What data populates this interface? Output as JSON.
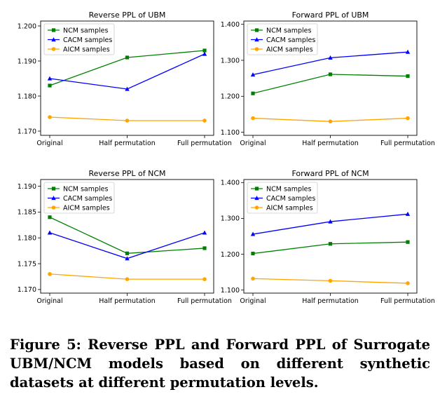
{
  "caption": "Figure 5: Reverse PPL and Forward PPL of Surrogate UBM/NCM models based on different synthetic datasets at different permutation levels.",
  "colors": {
    "ncm": "#008000",
    "cacm": "#0000ff",
    "aicm": "#ffa500"
  },
  "chart_data": [
    {
      "type": "line",
      "title": "Reverse PPL of UBM",
      "categories": [
        "Original",
        "Half permutation",
        "Full permutation"
      ],
      "ylim": [
        1.1688,
        1.2014
      ],
      "yticks": [
        1.17,
        1.18,
        1.19,
        1.2
      ],
      "yticklabels": [
        "1.170",
        "1.180",
        "1.190",
        "1.200"
      ],
      "legend": "top-left",
      "series": [
        {
          "name": "NCM samples",
          "marker": "square",
          "color": "#008000",
          "values": [
            1.183,
            1.191,
            1.193
          ]
        },
        {
          "name": "CACM samples",
          "marker": "triangle",
          "color": "#0000ff",
          "values": [
            1.185,
            1.182,
            1.192
          ]
        },
        {
          "name": "AICM samples",
          "marker": "circle",
          "color": "#ffa500",
          "values": [
            1.174,
            1.173,
            1.173
          ]
        }
      ]
    },
    {
      "type": "line",
      "title": "Forward PPL of UBM",
      "categories": [
        "Original",
        "Half permutation",
        "Full permutation"
      ],
      "ylim": [
        1.0914,
        1.4091
      ],
      "yticks": [
        1.1,
        1.2,
        1.3,
        1.4
      ],
      "yticklabels": [
        "1.100",
        "1.200",
        "1.300",
        "1.400"
      ],
      "legend": "top-left",
      "series": [
        {
          "name": "NCM samples",
          "marker": "square",
          "color": "#008000",
          "values": [
            1.208,
            1.261,
            1.256
          ]
        },
        {
          "name": "CACM samples",
          "marker": "triangle",
          "color": "#0000ff",
          "values": [
            1.26,
            1.307,
            1.323
          ]
        },
        {
          "name": "AICM samples",
          "marker": "circle",
          "color": "#ffa500",
          "values": [
            1.139,
            1.13,
            1.139
          ]
        }
      ]
    },
    {
      "type": "line",
      "title": "Reverse PPL of NCM",
      "categories": [
        "Original",
        "Half permutation",
        "Full permutation"
      ],
      "ylim": [
        1.1693,
        1.1913
      ],
      "yticks": [
        1.17,
        1.175,
        1.18,
        1.185,
        1.19
      ],
      "yticklabels": [
        "1.170",
        "1.175",
        "1.180",
        "1.185",
        "1.190"
      ],
      "legend": "top-left",
      "series": [
        {
          "name": "NCM samples",
          "marker": "square",
          "color": "#008000",
          "values": [
            1.184,
            1.177,
            1.178
          ]
        },
        {
          "name": "CACM samples",
          "marker": "triangle",
          "color": "#0000ff",
          "values": [
            1.181,
            1.176,
            1.181
          ]
        },
        {
          "name": "AICM samples",
          "marker": "circle",
          "color": "#ffa500",
          "values": [
            1.173,
            1.172,
            1.172
          ]
        }
      ]
    },
    {
      "type": "line",
      "title": "Forward PPL of NCM",
      "categories": [
        "Original",
        "Half permutation",
        "Full permutation"
      ],
      "ylim": [
        1.0915,
        1.4085
      ],
      "yticks": [
        1.1,
        1.2,
        1.3,
        1.4
      ],
      "yticklabels": [
        "1.100",
        "1.200",
        "1.300",
        "1.400"
      ],
      "legend": "top-left",
      "series": [
        {
          "name": "NCM samples",
          "marker": "square",
          "color": "#008000",
          "values": [
            1.202,
            1.229,
            1.234
          ]
        },
        {
          "name": "CACM samples",
          "marker": "triangle",
          "color": "#0000ff",
          "values": [
            1.256,
            1.291,
            1.312
          ]
        },
        {
          "name": "AICM samples",
          "marker": "circle",
          "color": "#ffa500",
          "values": [
            1.132,
            1.126,
            1.119
          ]
        }
      ]
    }
  ]
}
